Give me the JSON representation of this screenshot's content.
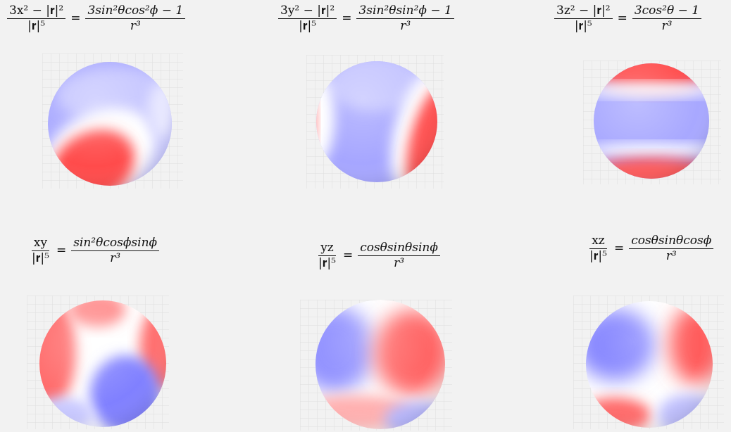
{
  "panels": [
    {
      "lhs_num": "3x² − |𝐫|²",
      "lhs_den": "|𝐫|⁵",
      "equals": "=",
      "rhs_num": "3sin²θcos²ϕ − 1",
      "rhs_den": "r³",
      "colors": {
        "positive": "#ff4444",
        "negative": "#7b7bff",
        "zero": "#ffffff"
      }
    },
    {
      "lhs_num": "3y² − |𝐫|²",
      "lhs_den": "|𝐫|⁵",
      "equals": "=",
      "rhs_num": "3sin²θsin²ϕ − 1",
      "rhs_den": "r³",
      "colors": {
        "positive": "#ff4444",
        "negative": "#7b7bff",
        "zero": "#ffffff"
      }
    },
    {
      "lhs_num": "3z² − |𝐫|²",
      "lhs_den": "|𝐫|⁵",
      "equals": "=",
      "rhs_num": "3cos²θ − 1",
      "rhs_den": "r³",
      "colors": {
        "positive": "#ff4444",
        "negative": "#7b7bff",
        "zero": "#ffffff"
      }
    },
    {
      "lhs_num": "xy",
      "lhs_den": "|𝐫|⁵",
      "equals": "=",
      "rhs_num": "sin²θcosϕsinϕ",
      "rhs_den": "r³",
      "colors": {
        "positive": "#ff4444",
        "negative": "#7b7bff",
        "zero": "#ffffff"
      }
    },
    {
      "lhs_num": "yz",
      "lhs_den": "|𝐫|⁵",
      "equals": "=",
      "rhs_num": "cosθsinθsinϕ",
      "rhs_den": "r³",
      "colors": {
        "positive": "#ff4444",
        "negative": "#7b7bff",
        "zero": "#ffffff"
      }
    },
    {
      "lhs_num": "xz",
      "lhs_den": "|𝐫|⁵",
      "equals": "=",
      "rhs_num": "cosθsinθcosϕ",
      "rhs_den": "r³",
      "colors": {
        "positive": "#ff4444",
        "negative": "#7b7bff",
        "zero": "#ffffff"
      }
    }
  ]
}
